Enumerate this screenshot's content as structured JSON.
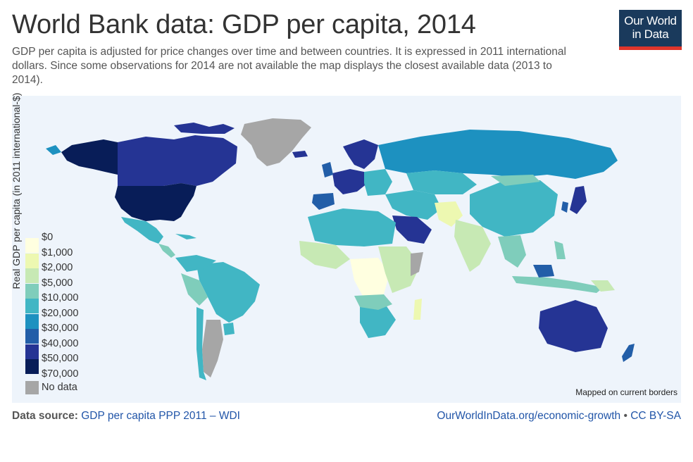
{
  "header": {
    "title": "World Bank data: GDP per capita, 2014",
    "subtitle": "GDP per capita is adjusted for price changes over time and between countries. It is expressed in 2011 international dollars. Since some observations for 2014 are not available the map displays the closest available data (2013 to 2014)."
  },
  "logo": {
    "line1": "Our World",
    "line2": "in Data"
  },
  "legend": {
    "title": "Real GDP per capita (in 2011 international-$)",
    "items": [
      {
        "label": "$0",
        "color": "#ffffe0"
      },
      {
        "label": "$1,000",
        "color": "#ffffc8"
      },
      {
        "label": "$2,000",
        "color": "#edf8b1"
      },
      {
        "label": "$5,000",
        "color": "#c7e9b4"
      },
      {
        "label": "$10,000",
        "color": "#7fcdbb"
      },
      {
        "label": "$20,000",
        "color": "#41b6c4"
      },
      {
        "label": "$30,000",
        "color": "#1d91c0"
      },
      {
        "label": "$40,000",
        "color": "#225ea8"
      },
      {
        "label": "$50,000",
        "color": "#253494"
      },
      {
        "label": "$70,000",
        "color": "#081d58"
      }
    ],
    "no_data_label": "No data",
    "no_data_color": "#a6a6a6"
  },
  "map": {
    "note": "Mapped on current borders",
    "ocean_color": "#eef4fb"
  },
  "footer": {
    "source_prefix": "Data source:",
    "source_link": "GDP per capita PPP 2011 – WDI",
    "site_link": "OurWorldInData.org/economic-growth",
    "separator": "•",
    "license": "CC BY-SA"
  }
}
